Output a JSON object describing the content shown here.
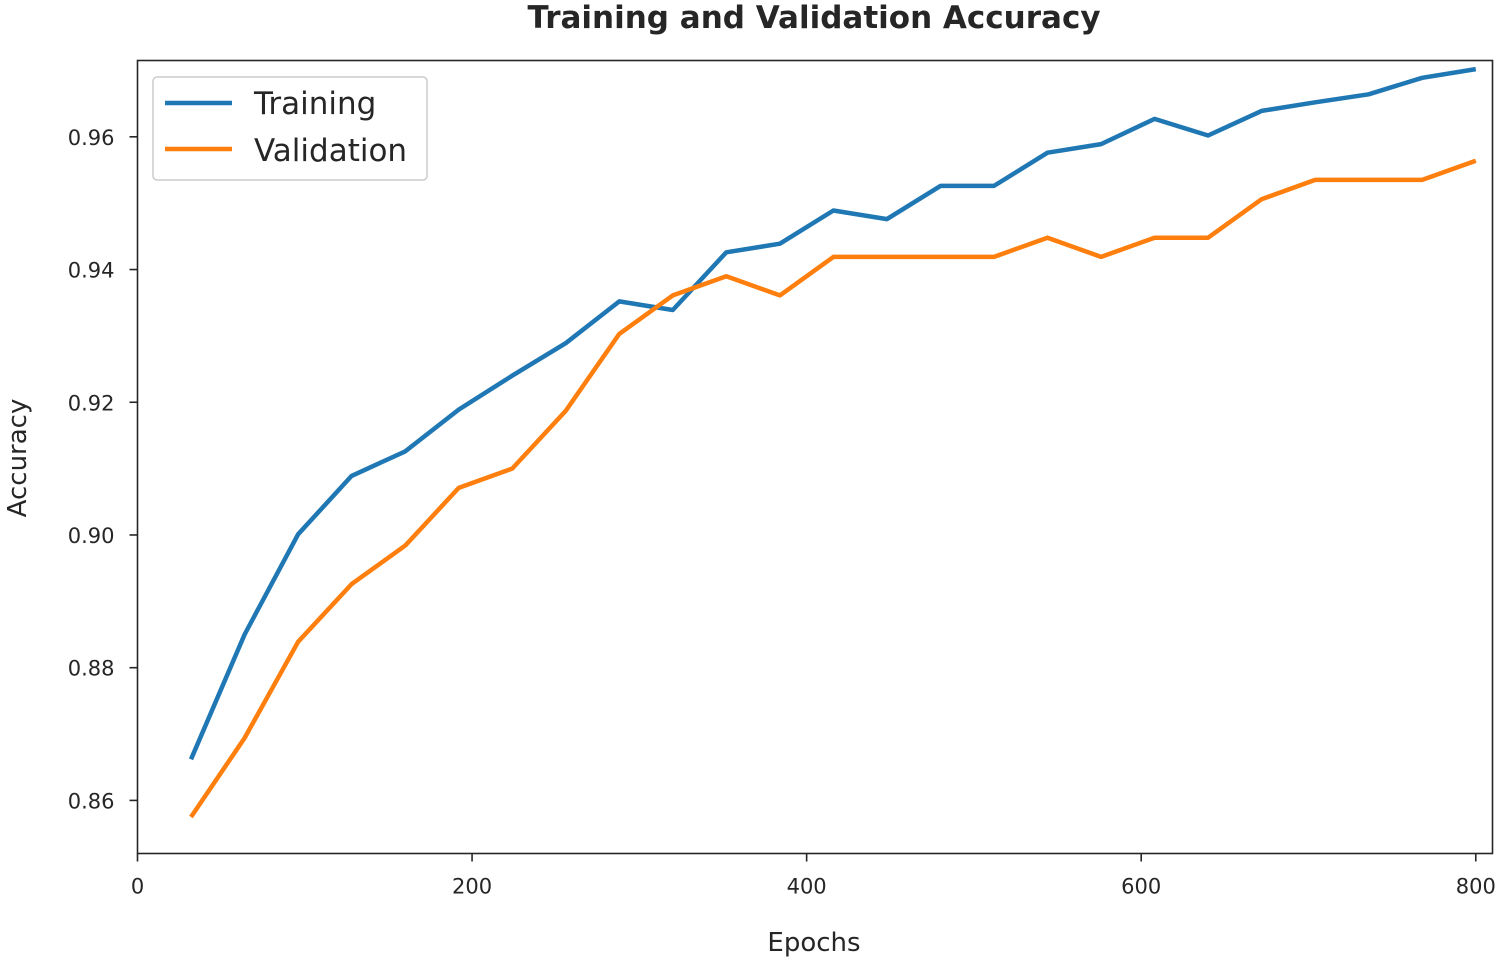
{
  "chart_data": {
    "type": "line",
    "title": "Training and Validation Accuracy",
    "xlabel": "Epochs",
    "ylabel": "Accuracy",
    "xlim": [
      0,
      810
    ],
    "ylim": [
      0.852,
      0.9715
    ],
    "xticks": [
      0,
      200,
      400,
      600,
      800
    ],
    "xtick_labels": [
      "0",
      "200",
      "400",
      "600",
      "800"
    ],
    "yticks": [
      0.86,
      0.88,
      0.9,
      0.92,
      0.94,
      0.96
    ],
    "ytick_labels": [
      "0.86",
      "0.88",
      "0.90",
      "0.92",
      "0.94",
      "0.96"
    ],
    "legend_position": "upper-left",
    "grid": false,
    "x": [
      32,
      64,
      96,
      128,
      160,
      192,
      224,
      256,
      288,
      320,
      352,
      384,
      416,
      448,
      480,
      512,
      544,
      576,
      608,
      640,
      672,
      704,
      736,
      768,
      800
    ],
    "series": [
      {
        "name": "Training",
        "color": "#1f77b4",
        "values": [
          0.8662,
          0.885,
          0.9001,
          0.9089,
          0.9126,
          0.9189,
          0.924,
          0.9289,
          0.9352,
          0.9339,
          0.9426,
          0.9439,
          0.9489,
          0.9476,
          0.9526,
          0.9526,
          0.9576,
          0.9589,
          0.9627,
          0.9602,
          0.9639,
          0.9652,
          0.9664,
          0.9689,
          0.9702
        ]
      },
      {
        "name": "Validation",
        "color": "#ff7f0e",
        "values": [
          0.8575,
          0.8694,
          0.8839,
          0.8926,
          0.8984,
          0.9071,
          0.91,
          0.9187,
          0.9303,
          0.9361,
          0.939,
          0.9361,
          0.9419,
          0.9419,
          0.9419,
          0.9419,
          0.9448,
          0.9419,
          0.9448,
          0.9448,
          0.9506,
          0.9535,
          0.9535,
          0.9535,
          0.9564
        ]
      }
    ]
  }
}
